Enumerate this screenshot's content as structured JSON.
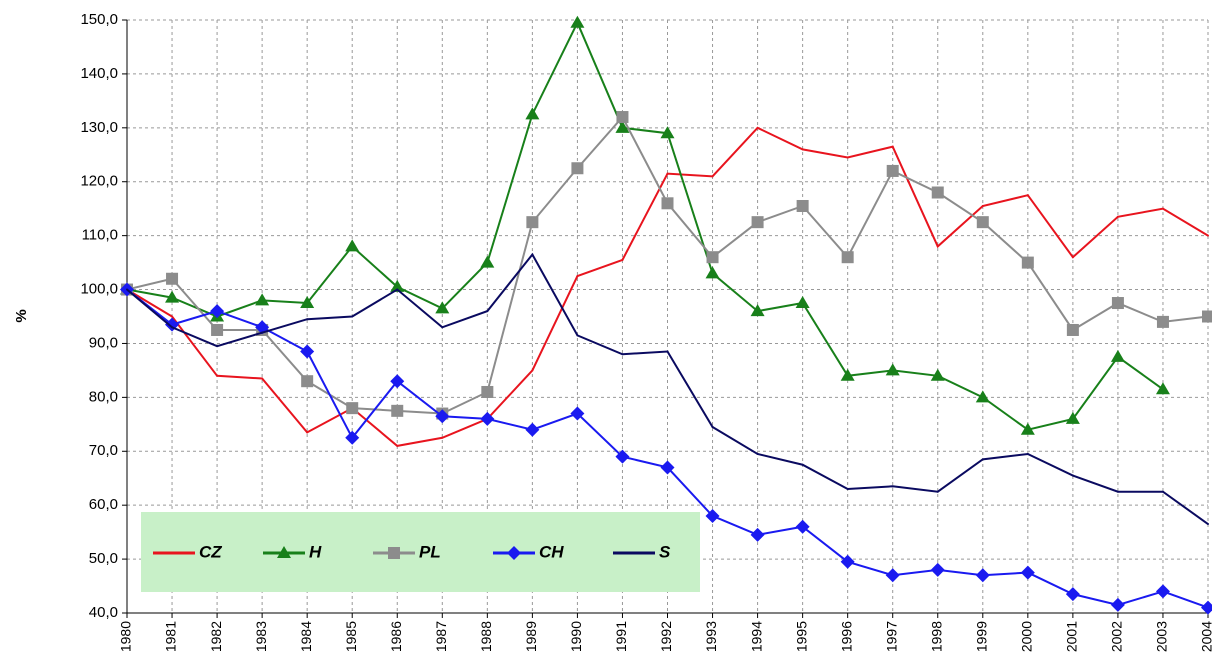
{
  "chart_data": {
    "type": "line",
    "y_label": "%",
    "categories": [
      "1980",
      "1981",
      "1982",
      "1983",
      "1984",
      "1985",
      "1986",
      "1987",
      "1988",
      "1989",
      "1990",
      "1991",
      "1992",
      "1993",
      "1994",
      "1995",
      "1996",
      "1997",
      "1998",
      "1999",
      "2000",
      "2001",
      "2002",
      "2003",
      "2004"
    ],
    "series": [
      {
        "name": "CZ",
        "color": "#e8141e",
        "marker": "none",
        "values": [
          100,
          95,
          84,
          83.5,
          73.5,
          78,
          71,
          72.5,
          76,
          85,
          102.5,
          105.5,
          121.5,
          121,
          130,
          126,
          124.5,
          126.5,
          108,
          115.5,
          117.5,
          106,
          113.5,
          115,
          110
        ]
      },
      {
        "name": "H",
        "color": "#18801a",
        "marker": "triangle",
        "values": [
          100,
          98.5,
          95,
          98,
          97.5,
          108,
          100.5,
          96.5,
          105,
          132.5,
          149.5,
          130,
          129,
          103,
          96,
          97.5,
          84,
          85,
          84,
          80,
          74,
          76,
          87.5,
          81.5,
          null
        ]
      },
      {
        "name": "PL",
        "color": "#8c8c8c",
        "marker": "square",
        "values": [
          100,
          102,
          92.5,
          92.5,
          83,
          78,
          77.5,
          77,
          81,
          112.5,
          122.5,
          132,
          116,
          106,
          112.5,
          115.5,
          106,
          122,
          118,
          112.5,
          105,
          92.5,
          97.5,
          94,
          95
        ]
      },
      {
        "name": "CH",
        "color": "#1a1af0",
        "marker": "diamond",
        "values": [
          100,
          93.5,
          96,
          93,
          88.5,
          72.5,
          83,
          76.5,
          76,
          74,
          77,
          69,
          67,
          58,
          54.5,
          56,
          49.5,
          47,
          48,
          47,
          47.5,
          43.5,
          41.5,
          44,
          41
        ]
      },
      {
        "name": "S",
        "color": "#0a0a60",
        "marker": "none",
        "values": [
          100,
          93,
          89.5,
          92,
          94.5,
          95,
          100,
          93,
          96,
          106.5,
          91.5,
          88,
          88.5,
          74.5,
          69.5,
          67.5,
          63,
          63.5,
          62.5,
          68.5,
          69.5,
          65.5,
          62.5,
          62.5,
          56.5
        ]
      }
    ],
    "ylim": [
      40,
      150
    ],
    "yticks": [
      {
        "value": 40,
        "label": "40,0"
      },
      {
        "value": 50,
        "label": "50,0"
      },
      {
        "value": 60,
        "label": "60,0"
      },
      {
        "value": 70,
        "label": "70,0"
      },
      {
        "value": 80,
        "label": "80,0"
      },
      {
        "value": 90,
        "label": "90,0"
      },
      {
        "value": 100,
        "label": "100,0"
      },
      {
        "value": 110,
        "label": "110,0"
      },
      {
        "value": 120,
        "label": "120,0"
      },
      {
        "value": 130,
        "label": "130,0"
      },
      {
        "value": 140,
        "label": "140,0"
      },
      {
        "value": 150,
        "label": "150,0"
      }
    ],
    "grid": true,
    "legend": "lower left",
    "legend_color": "#c8f0c8"
  }
}
